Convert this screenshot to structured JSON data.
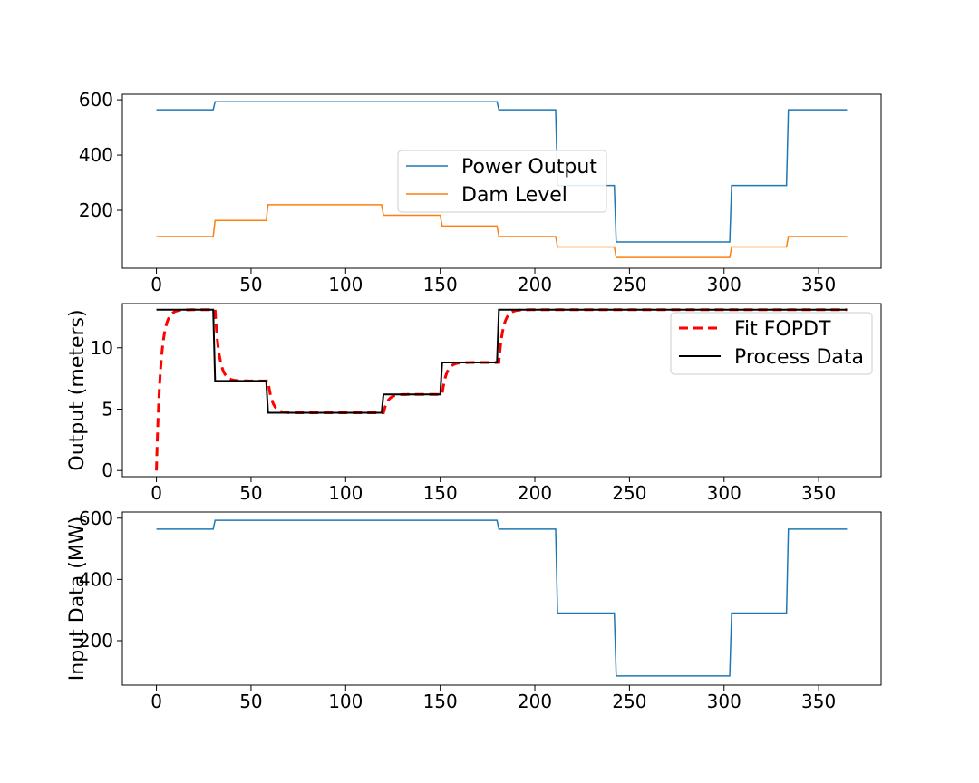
{
  "colors": {
    "power": "#1f77b4",
    "dam": "#ff7f0e",
    "fit": "#ff0000",
    "process": "#000000"
  },
  "chart_data": [
    {
      "type": "line",
      "title": "",
      "xlabel": "",
      "ylabel": "",
      "xlim": [
        -18,
        383
      ],
      "ylim": [
        -10,
        620
      ],
      "xticks": [
        0,
        50,
        100,
        150,
        200,
        250,
        300,
        350
      ],
      "yticks": [
        200,
        400,
        600
      ],
      "legend": "center",
      "series": [
        {
          "name": "Power Output",
          "color_key": "power",
          "style": "step",
          "width": 1.5,
          "steps": [
            [
              0,
              564
            ],
            [
              31,
              593
            ],
            [
              181,
              564
            ],
            [
              212,
              290
            ],
            [
              243,
              85
            ],
            [
              304,
              290
            ],
            [
              334,
              564
            ],
            [
              365,
              564
            ]
          ]
        },
        {
          "name": "Dam Level",
          "color_key": "dam",
          "style": "step",
          "width": 1.5,
          "steps": [
            [
              0,
              105
            ],
            [
              31,
              163
            ],
            [
              59,
              220
            ],
            [
              120,
              182
            ],
            [
              151,
              143
            ],
            [
              181,
              105
            ],
            [
              212,
              67
            ],
            [
              243,
              29
            ],
            [
              304,
              67
            ],
            [
              334,
              105
            ],
            [
              365,
              105
            ]
          ]
        }
      ]
    },
    {
      "type": "line",
      "title": "",
      "xlabel": "",
      "ylabel": "Output (meters)",
      "xlim": [
        -18,
        383
      ],
      "ylim": [
        -0.5,
        13.6
      ],
      "xticks": [
        0,
        50,
        100,
        150,
        200,
        250,
        300,
        350
      ],
      "yticks": [
        0,
        5,
        10
      ],
      "legend": "upper right",
      "series": [
        {
          "name": "Fit FOPDT",
          "color_key": "fit",
          "style": "fopdt",
          "dash": "10,6",
          "width": 3,
          "start": 0,
          "tau": 2.2,
          "steps": [
            [
              0,
              13.1
            ],
            [
              31,
              7.3
            ],
            [
              59,
              4.7
            ],
            [
              120,
              6.2
            ],
            [
              151,
              8.8
            ],
            [
              181,
              13.1
            ],
            [
              365,
              13.1
            ]
          ]
        },
        {
          "name": "Process Data",
          "color_key": "process",
          "style": "step",
          "width": 2,
          "steps": [
            [
              0,
              13.1
            ],
            [
              31,
              7.3
            ],
            [
              59,
              4.7
            ],
            [
              120,
              6.2
            ],
            [
              151,
              8.8
            ],
            [
              181,
              13.1
            ],
            [
              365,
              13.1
            ]
          ]
        }
      ]
    },
    {
      "type": "line",
      "title": "",
      "xlabel": "",
      "ylabel": "Input Data (MW)",
      "xlim": [
        -18,
        383
      ],
      "ylim": [
        55,
        620
      ],
      "xticks": [
        0,
        50,
        100,
        150,
        200,
        250,
        300,
        350
      ],
      "yticks": [
        200,
        400,
        600
      ],
      "legend": "none",
      "series": [
        {
          "name": "",
          "color_key": "power",
          "style": "step",
          "width": 1.5,
          "steps": [
            [
              0,
              564
            ],
            [
              31,
              593
            ],
            [
              181,
              564
            ],
            [
              212,
              290
            ],
            [
              243,
              85
            ],
            [
              304,
              290
            ],
            [
              334,
              564
            ],
            [
              365,
              564
            ]
          ]
        }
      ]
    }
  ]
}
